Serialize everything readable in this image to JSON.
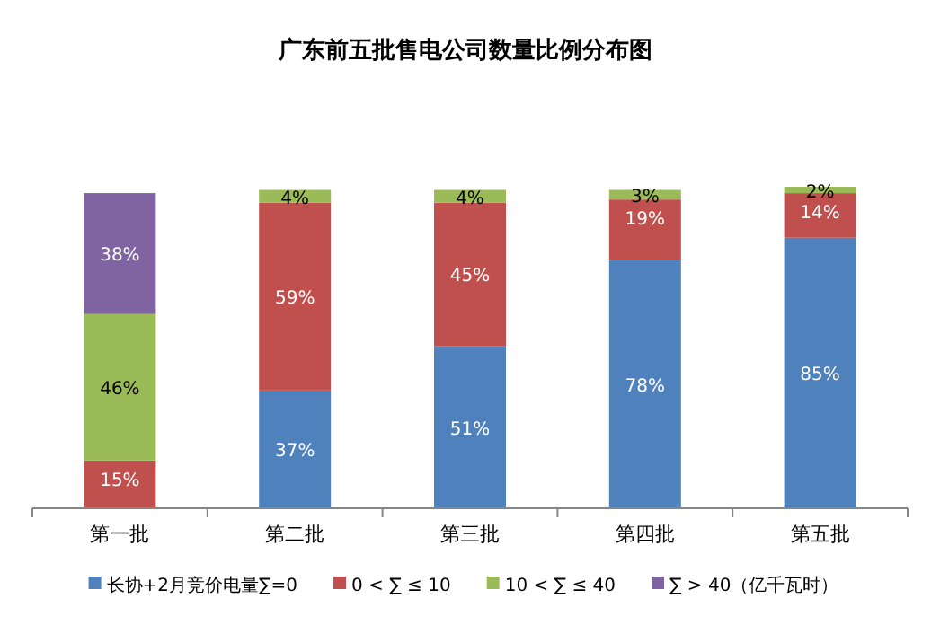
{
  "chart_data": {
    "type": "bar",
    "stacked": true,
    "title": "广东前五批售电公司数量比例分布图",
    "categories": [
      "第一批",
      "第二批",
      "第三批",
      "第四批",
      "第五批"
    ],
    "legend": "bottom",
    "grid": false,
    "series": [
      {
        "name": "长协+2月竞价电量∑=0",
        "color": "#4f81bd",
        "values": [
          null,
          37,
          51,
          78,
          85
        ],
        "value_labels": [
          null,
          "37%",
          "51%",
          "78%",
          "85%"
        ]
      },
      {
        "name": "0 < ∑ ≤ 10",
        "color": "#c0504d",
        "values": [
          15,
          59,
          45,
          19,
          14
        ],
        "value_labels": [
          "15%",
          "59%",
          "45%",
          "19%",
          "14%"
        ]
      },
      {
        "name": "10 < ∑ ≤ 40",
        "color": "#9bbb59",
        "values": [
          46,
          4,
          4,
          3,
          2
        ],
        "value_labels": [
          "46%",
          "4%",
          "4%",
          "3%",
          "2%"
        ]
      },
      {
        "name": "∑ > 40（亿千瓦时）",
        "color": "#8064a2",
        "values": [
          38,
          null,
          null,
          null,
          null
        ],
        "value_labels": [
          "38%",
          null,
          null,
          null,
          null
        ]
      }
    ]
  }
}
